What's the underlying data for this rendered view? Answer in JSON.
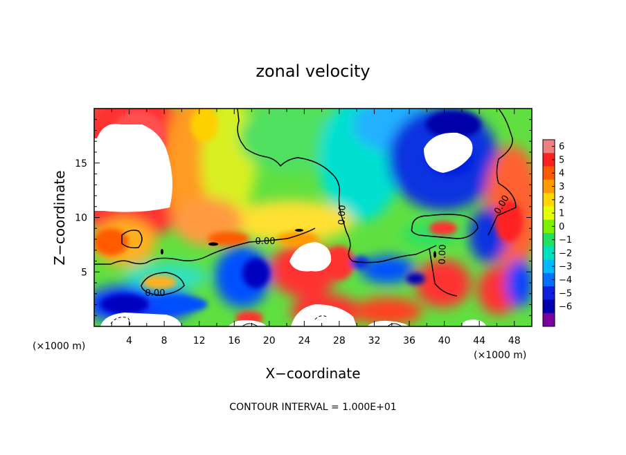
{
  "chart_data": {
    "type": "heatmap",
    "title": "zonal velocity",
    "xlabel": "X−coordinate",
    "ylabel": "Z−coordinate",
    "x_unit_left": "(×1000 m)",
    "x_unit_right": "(×1000 m)",
    "x_ticks": [
      "4",
      "8",
      "12",
      "16",
      "20",
      "24",
      "28",
      "32",
      "36",
      "40",
      "44",
      "48"
    ],
    "y_ticks": [
      "5",
      "10",
      "15"
    ],
    "xlim": [
      0,
      50
    ],
    "ylim": [
      0,
      20
    ],
    "colorbar": {
      "labels": [
        "6",
        "5",
        "4",
        "3",
        "2",
        "1",
        "0",
        "−1",
        "−2",
        "−3",
        "−4",
        "−5",
        "−6"
      ],
      "colors": [
        "#f08080",
        "#ff2020",
        "#ff5a00",
        "#ff9a00",
        "#ffd700",
        "#e8ff00",
        "#7cf000",
        "#20e060",
        "#00e0c0",
        "#00b8ff",
        "#0070ff",
        "#1020e0",
        "#0000b0",
        "#7a00a0"
      ]
    },
    "contour_labels": [
      "0.00",
      "0.00",
      "0.00",
      "0.00",
      "0.00"
    ],
    "footer": "CONTOUR INTERVAL = 1.000E+01",
    "colors": {
      "out_of_range": "#ffffff",
      "contour": "#000000"
    }
  }
}
